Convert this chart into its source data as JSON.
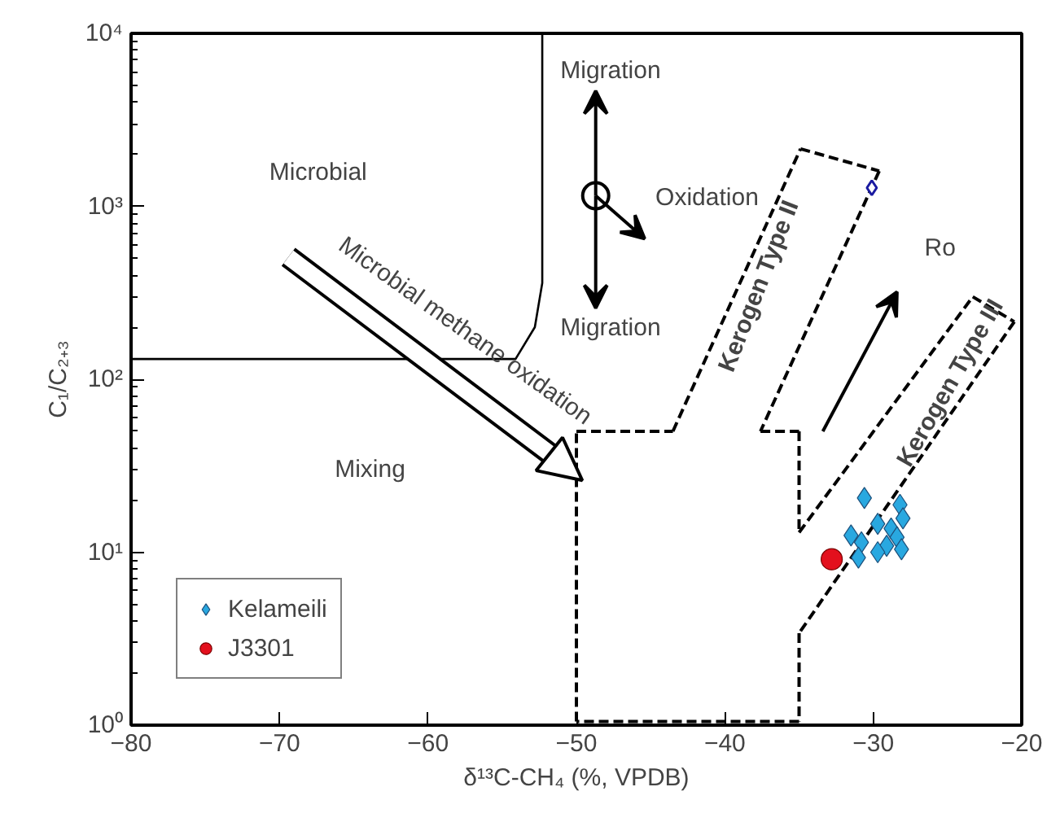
{
  "chart_data": {
    "type": "scatter",
    "xlabel": "δ¹³C-CH₄ (%, VPDB)",
    "ylabel": "C₁/C₂₊₃",
    "log": "y",
    "grid": false,
    "legend": "bottom left",
    "xlim": [
      -80,
      -20
    ],
    "xticks": [
      -80,
      -70,
      -60,
      -50,
      -40,
      -30,
      -20
    ],
    "ylim": [
      1,
      10000
    ],
    "yticks": [
      {
        "value": 1,
        "label": "10⁰"
      },
      {
        "value": 10,
        "label": "10¹"
      },
      {
        "value": 100,
        "label": "10²"
      },
      {
        "value": 1000,
        "label": "10³"
      },
      {
        "value": 10000,
        "label": "10⁴"
      }
    ],
    "series": [
      {
        "name": "Kelameili",
        "color": "#29a8e0",
        "marker": "diamond",
        "x": [
          -30.6,
          -28.2,
          -29.7,
          -28.0,
          -28.8,
          -28.4,
          -31.5,
          -30.8,
          -29.1,
          -29.7,
          -31.0,
          -28.1
        ],
        "values": [
          20.6,
          18.8,
          14.6,
          15.7,
          13.7,
          12.2,
          12.5,
          11.4,
          10.9,
          10.0,
          9.3,
          10.4
        ]
      },
      {
        "name": "J3301",
        "color": "#e3101d",
        "marker": "circle",
        "x": [
          -32.8
        ],
        "values": [
          9.1
        ]
      },
      {
        "color": "#1a1aa0",
        "marker": "diamond",
        "x": [
          -30.1
        ],
        "values": [
          1280
        ]
      },
      {
        "type": "line",
        "color": "#000000",
        "line_style": "solid",
        "marker": "none",
        "x": [
          -80,
          -54.1,
          -52.8,
          -52.3,
          -52.3
        ],
        "values": [
          131,
          131,
          200,
          360,
          10000
        ]
      },
      {
        "type": "line",
        "color": "#000000",
        "line_style": "dashed",
        "marker": "none",
        "x": [
          -50,
          -50
        ],
        "values": [
          1.05,
          50
        ]
      },
      {
        "type": "line",
        "color": "#000000",
        "line_style": "dashed",
        "marker": "none",
        "x": [
          -50,
          -43.5
        ],
        "values": [
          50,
          50
        ]
      },
      {
        "type": "line",
        "color": "#000000",
        "line_style": "dashed",
        "marker": "none",
        "x": [
          -43.5,
          -34.9
        ],
        "values": [
          50,
          2150
        ]
      },
      {
        "type": "line",
        "color": "#000000",
        "line_style": "dashed",
        "marker": "none",
        "x": [
          -34.9,
          -29.6
        ],
        "values": [
          2150,
          1600
        ]
      },
      {
        "type": "line",
        "color": "#000000",
        "line_style": "dashed",
        "marker": "none",
        "x": [
          -29.6,
          -37.6
        ],
        "values": [
          1600,
          50
        ]
      },
      {
        "type": "line",
        "color": "#000000",
        "line_style": "dashed",
        "marker": "none",
        "x": [
          -37.6,
          -35
        ],
        "values": [
          50,
          50
        ]
      },
      {
        "type": "line",
        "color": "#000000",
        "line_style": "dashed",
        "marker": "none",
        "x": [
          -35,
          -35
        ],
        "values": [
          50,
          13
        ]
      },
      {
        "type": "line",
        "color": "#000000",
        "line_style": "dashed",
        "marker": "none",
        "x": [
          -35,
          -23.3
        ],
        "values": [
          13,
          300
        ]
      },
      {
        "type": "line",
        "color": "#000000",
        "line_style": "dashed",
        "marker": "none",
        "x": [
          -23.3,
          -20.5
        ],
        "values": [
          300,
          215
        ]
      },
      {
        "type": "line",
        "color": "#000000",
        "line_style": "dashed",
        "marker": "none",
        "x": [
          -20.5,
          -35
        ],
        "values": [
          215,
          3.4
        ]
      },
      {
        "type": "line",
        "color": "#000000",
        "line_style": "dashed",
        "marker": "none",
        "x": [
          -35,
          -35
        ],
        "values": [
          3.4,
          1.05
        ]
      },
      {
        "type": "line",
        "color": "#000000",
        "line_style": "dashed",
        "marker": "none",
        "x": [
          -35,
          -50
        ],
        "values": [
          1.05,
          1.05
        ]
      }
    ],
    "annotations": [
      "Migration",
      "Migration",
      "Oxidation",
      "Microbial",
      "Mixing",
      "Microbial methane oxidation",
      "Kerogen Type II",
      "Kerogen Type III",
      "Ro"
    ]
  }
}
